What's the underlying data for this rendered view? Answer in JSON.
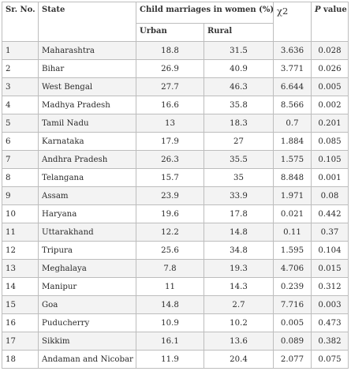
{
  "headers": {
    "sr": "Sr. No.",
    "state": "State",
    "group": "Child marriages in women (%)",
    "urban": "Urban",
    "rural": "Rural",
    "chi": "χ2",
    "pvalue_p": "P",
    "pvalue_rest": " value"
  },
  "rows": [
    {
      "sr": "1",
      "state": "Maharashtra",
      "urban": "18.8",
      "rural": "31.5",
      "chi": "3.636",
      "p": "0.028"
    },
    {
      "sr": "2",
      "state": "Bihar",
      "urban": "26.9",
      "rural": "40.9",
      "chi": "3.771",
      "p": "0.026"
    },
    {
      "sr": "3",
      "state": "West Bengal",
      "urban": "27.7",
      "rural": "46.3",
      "chi": "6.644",
      "p": "0.005"
    },
    {
      "sr": "4",
      "state": "Madhya Pradesh",
      "urban": "16.6",
      "rural": "35.8",
      "chi": "8.566",
      "p": "0.002"
    },
    {
      "sr": "5",
      "state": "Tamil Nadu",
      "urban": "13",
      "rural": "18.3",
      "chi": "0.7",
      "p": "0.201"
    },
    {
      "sr": "6",
      "state": "Karnataka",
      "urban": "17.9",
      "rural": "27",
      "chi": "1.884",
      "p": "0.085"
    },
    {
      "sr": "7",
      "state": "Andhra Pradesh",
      "urban": "26.3",
      "rural": "35.5",
      "chi": "1.575",
      "p": "0.105"
    },
    {
      "sr": "8",
      "state": "Telangana",
      "urban": "15.7",
      "rural": "35",
      "chi": "8.848",
      "p": "0.001"
    },
    {
      "sr": "9",
      "state": "Assam",
      "urban": "23.9",
      "rural": "33.9",
      "chi": "1.971",
      "p": "0.08"
    },
    {
      "sr": "10",
      "state": "Haryana",
      "urban": "19.6",
      "rural": "17.8",
      "chi": "0.021",
      "p": "0.442"
    },
    {
      "sr": "11",
      "state": "Uttarakhand",
      "urban": "12.2",
      "rural": "14.8",
      "chi": "0.11",
      "p": "0.37"
    },
    {
      "sr": "12",
      "state": "Tripura",
      "urban": "25.6",
      "rural": "34.8",
      "chi": "1.595",
      "p": "0.104"
    },
    {
      "sr": "13",
      "state": "Meghalaya",
      "urban": "7.8",
      "rural": "19.3",
      "chi": "4.706",
      "p": "0.015"
    },
    {
      "sr": "14",
      "state": "Manipur",
      "urban": "11",
      "rural": "14.3",
      "chi": "0.239",
      "p": "0.312"
    },
    {
      "sr": "15",
      "state": "Goa",
      "urban": "14.8",
      "rural": "2.7",
      "chi": "7.716",
      "p": "0.003"
    },
    {
      "sr": "16",
      "state": "Puducherry",
      "urban": "10.9",
      "rural": "10.2",
      "chi": "0.005",
      "p": "0.473"
    },
    {
      "sr": "17",
      "state": "Sikkim",
      "urban": "16.1",
      "rural": "13.6",
      "chi": "0.089",
      "p": "0.382"
    },
    {
      "sr": "18",
      "state": "Andaman and Nicobar",
      "urban": "11.9",
      "rural": "20.4",
      "chi": "2.077",
      "p": "0.075"
    }
  ]
}
